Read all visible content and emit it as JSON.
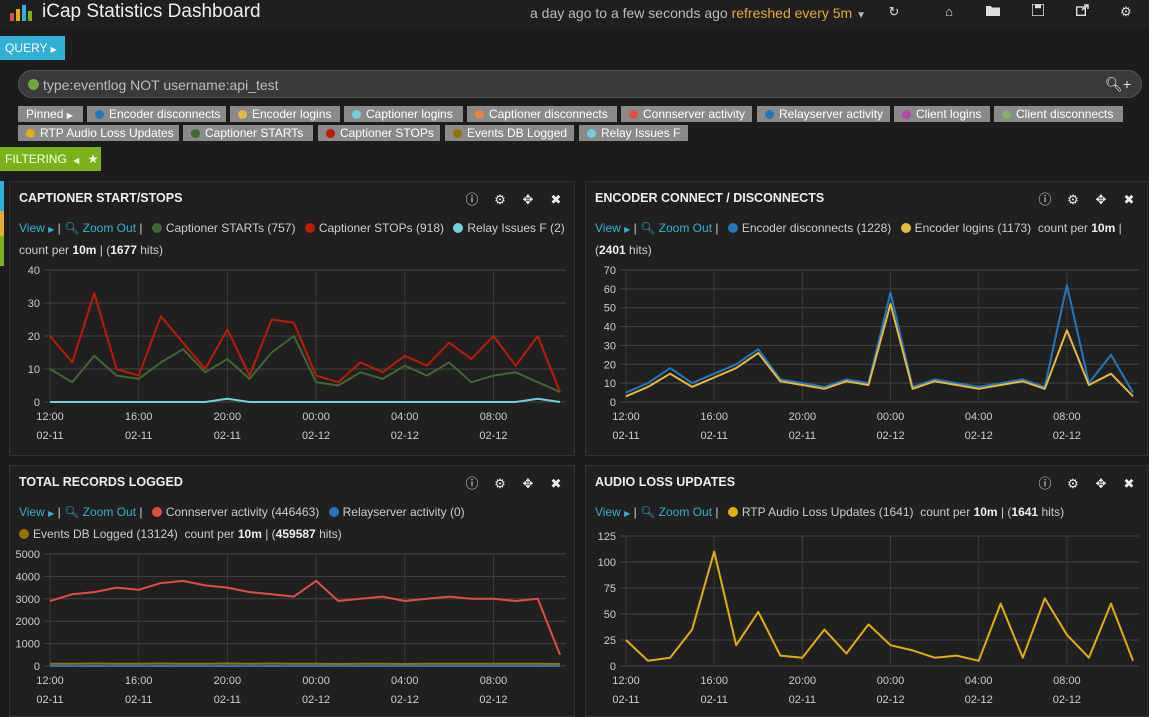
{
  "header": {
    "title": "iCap Statistics Dashboard",
    "time_range": "a day ago to a few seconds ago",
    "refresh": "refreshed every 5m"
  },
  "query": {
    "label": "QUERY",
    "text": "type:eventlog NOT username:api_test"
  },
  "filters": {
    "label": "FILTERING",
    "pinned": "Pinned",
    "pills": [
      {
        "label": "Encoder disconnects",
        "color": "#1f78c1"
      },
      {
        "label": "Encoder logins",
        "color": "#eab839"
      },
      {
        "label": "Captioner logins",
        "color": "#6ed0e0"
      },
      {
        "label": "Captioner disconnects",
        "color": "#ef843c"
      },
      {
        "label": "Connserver activity",
        "color": "#e24d42"
      },
      {
        "label": "Relayserver activity",
        "color": "#1f78c1"
      },
      {
        "label": "Client logins",
        "color": "#ba43a9"
      },
      {
        "label": "Client disconnects",
        "color": "#7eb26d"
      },
      {
        "label": "RTP Audio Loss Updates",
        "color": "#e5ac0e"
      },
      {
        "label": "Captioner STARTs",
        "color": "#3f6833"
      },
      {
        "label": "Captioner STOPs",
        "color": "#bf1b00"
      },
      {
        "label": "Events DB Logged",
        "color": "#967302"
      },
      {
        "label": "Relay Issues F",
        "color": "#6ed0e0"
      }
    ]
  },
  "common": {
    "view": "View",
    "zoom_out": "Zoom Out",
    "count_per": "count per",
    "interval": "10m",
    "hits_suffix": "hits"
  },
  "x_ticks_main": [
    "12:00",
    "16:00",
    "20:00",
    "00:00",
    "04:00",
    "08:00"
  ],
  "x_ticks_dates": [
    "02-11",
    "02-11",
    "02-11",
    "02-12",
    "02-12",
    "02-12"
  ],
  "panels": {
    "captioner": {
      "title": "CAPTIONER START/STOPS",
      "series": [
        {
          "name": "Captioner STARTs",
          "count": "757",
          "color": "#3f6833"
        },
        {
          "name": "Captioner STOPs",
          "count": "918",
          "color": "#bf1b00"
        },
        {
          "name": "Relay Issues F",
          "count": "2",
          "color": "#6ed0e0"
        }
      ],
      "hits": "1677"
    },
    "encoder": {
      "title": "ENCODER CONNECT / DISCONNECTS",
      "series": [
        {
          "name": "Encoder disconnects",
          "count": "1228",
          "color": "#1f78c1"
        },
        {
          "name": "Encoder logins",
          "count": "1173",
          "color": "#eab839"
        }
      ],
      "hits": "2401"
    },
    "records": {
      "title": "TOTAL RECORDS LOGGED",
      "series": [
        {
          "name": "Connserver activity",
          "count": "446463",
          "color": "#e24d42"
        },
        {
          "name": "Relayserver activity",
          "count": "0",
          "color": "#1f78c1"
        },
        {
          "name": "Events DB Logged",
          "count": "13124",
          "color": "#967302"
        }
      ],
      "hits": "459587"
    },
    "audio": {
      "title": "AUDIO LOSS UPDATES",
      "series": [
        {
          "name": "RTP Audio Loss Updates",
          "count": "1641",
          "color": "#e5ac0e"
        }
      ],
      "hits": "1641"
    }
  },
  "chart_data": [
    {
      "type": "line",
      "title": "CAPTIONER START/STOPS",
      "x": [
        "12:00",
        "13:00",
        "14:00",
        "15:00",
        "16:00",
        "17:00",
        "18:00",
        "19:00",
        "20:00",
        "21:00",
        "22:00",
        "23:00",
        "00:00",
        "01:00",
        "02:00",
        "03:00",
        "04:00",
        "05:00",
        "06:00",
        "07:00",
        "08:00",
        "09:00",
        "10:00",
        "11:00"
      ],
      "series": [
        {
          "name": "Captioner STARTs",
          "values": [
            10,
            6,
            14,
            8,
            7,
            12,
            16,
            9,
            13,
            7,
            15,
            20,
            6,
            5,
            9,
            7,
            11,
            8,
            12,
            6,
            8,
            9,
            6,
            3
          ]
        },
        {
          "name": "Captioner STOPs",
          "values": [
            20,
            12,
            33,
            10,
            8,
            26,
            18,
            10,
            22,
            8,
            25,
            24,
            8,
            6,
            12,
            9,
            14,
            11,
            18,
            13,
            20,
            11,
            20,
            3
          ]
        },
        {
          "name": "Relay Issues F",
          "values": [
            0,
            0,
            0,
            0,
            0,
            0,
            0,
            0,
            1,
            0,
            0,
            0,
            0,
            0,
            0,
            0,
            0,
            0,
            0,
            0,
            0,
            0,
            1,
            0
          ]
        }
      ],
      "ylim": [
        0,
        40
      ],
      "yticks": [
        0,
        10,
        20,
        30,
        40
      ]
    },
    {
      "type": "line",
      "title": "ENCODER CONNECT / DISCONNECTS",
      "x": [
        "12:00",
        "13:00",
        "14:00",
        "15:00",
        "16:00",
        "17:00",
        "18:00",
        "19:00",
        "20:00",
        "21:00",
        "22:00",
        "23:00",
        "00:00",
        "01:00",
        "02:00",
        "03:00",
        "04:00",
        "05:00",
        "06:00",
        "07:00",
        "08:00",
        "09:00",
        "10:00",
        "11:00"
      ],
      "series": [
        {
          "name": "Encoder disconnects",
          "values": [
            5,
            10,
            18,
            10,
            15,
            20,
            28,
            12,
            10,
            8,
            12,
            10,
            58,
            8,
            12,
            10,
            8,
            10,
            12,
            8,
            62,
            10,
            25,
            5
          ]
        },
        {
          "name": "Encoder logins",
          "values": [
            3,
            8,
            15,
            8,
            13,
            18,
            26,
            11,
            9,
            7,
            11,
            9,
            52,
            7,
            11,
            9,
            7,
            9,
            11,
            7,
            38,
            9,
            15,
            3
          ]
        }
      ],
      "ylim": [
        0,
        70
      ],
      "yticks": [
        0,
        10,
        20,
        30,
        40,
        50,
        60,
        70
      ]
    },
    {
      "type": "line",
      "title": "TOTAL RECORDS LOGGED",
      "x": [
        "12:00",
        "13:00",
        "14:00",
        "15:00",
        "16:00",
        "17:00",
        "18:00",
        "19:00",
        "20:00",
        "21:00",
        "22:00",
        "23:00",
        "00:00",
        "01:00",
        "02:00",
        "03:00",
        "04:00",
        "05:00",
        "06:00",
        "07:00",
        "08:00",
        "09:00",
        "10:00",
        "11:00"
      ],
      "series": [
        {
          "name": "Connserver activity",
          "values": [
            2900,
            3200,
            3300,
            3500,
            3400,
            3700,
            3800,
            3600,
            3500,
            3300,
            3200,
            3100,
            3800,
            2900,
            3000,
            3100,
            2900,
            3000,
            3100,
            3000,
            3000,
            2900,
            3000,
            500
          ]
        },
        {
          "name": "Relayserver activity",
          "values": [
            0,
            0,
            0,
            0,
            0,
            0,
            0,
            0,
            0,
            0,
            0,
            0,
            0,
            0,
            0,
            0,
            0,
            0,
            0,
            0,
            0,
            0,
            0,
            0
          ]
        },
        {
          "name": "Events DB Logged",
          "values": [
            100,
            100,
            110,
            100,
            100,
            110,
            100,
            100,
            110,
            100,
            110,
            100,
            100,
            90,
            100,
            100,
            90,
            100,
            100,
            100,
            100,
            100,
            100,
            90
          ]
        }
      ],
      "ylim": [
        0,
        5000
      ],
      "yticks": [
        0,
        1000,
        2000,
        3000,
        4000,
        5000
      ]
    },
    {
      "type": "line",
      "title": "AUDIO LOSS UPDATES",
      "x": [
        "12:00",
        "13:00",
        "14:00",
        "15:00",
        "16:00",
        "17:00",
        "18:00",
        "19:00",
        "20:00",
        "21:00",
        "22:00",
        "23:00",
        "00:00",
        "01:00",
        "02:00",
        "03:00",
        "04:00",
        "05:00",
        "06:00",
        "07:00",
        "08:00",
        "09:00",
        "10:00",
        "11:00"
      ],
      "series": [
        {
          "name": "RTP Audio Loss Updates",
          "values": [
            25,
            5,
            8,
            35,
            110,
            20,
            52,
            10,
            8,
            35,
            12,
            40,
            20,
            15,
            8,
            10,
            5,
            60,
            8,
            65,
            30,
            8,
            60,
            5
          ]
        }
      ],
      "ylim": [
        0,
        125
      ],
      "yticks": [
        0,
        25,
        50,
        75,
        100,
        125
      ]
    }
  ]
}
